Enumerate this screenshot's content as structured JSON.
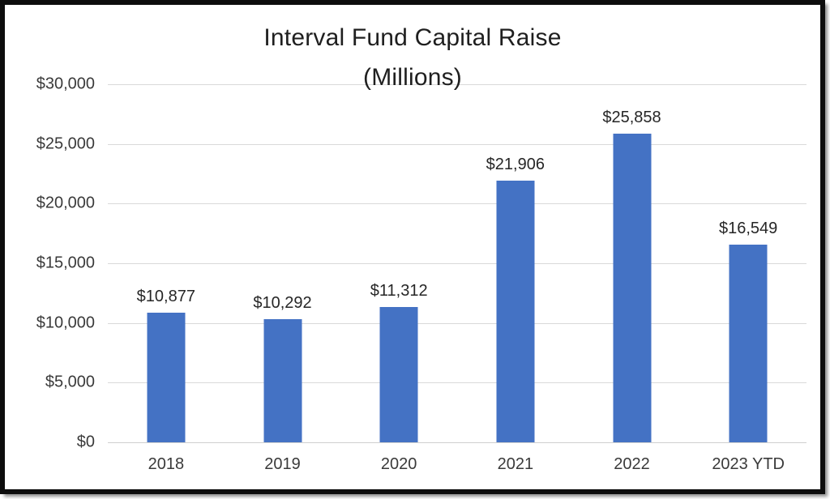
{
  "chart_data": {
    "type": "bar",
    "title": "Interval Fund Capital Raise",
    "subtitle": "(Millions)",
    "categories": [
      "2018",
      "2019",
      "2020",
      "2021",
      "2022",
      "2023 YTD"
    ],
    "values": [
      10877,
      10292,
      11312,
      21906,
      25858,
      16549
    ],
    "data_labels": [
      "$10,877",
      "$10,292",
      "$11,312",
      "$21,906",
      "$25,858",
      "$16,549"
    ],
    "y_tick_labels": [
      "$30,000",
      "$25,000",
      "$20,000",
      "$15,000",
      "$10,000",
      "$5,000",
      "$0"
    ],
    "ylim": [
      0,
      30000
    ],
    "y_tick_step": 5000,
    "xlabel": "",
    "ylabel": "",
    "grid": true,
    "legend": "none",
    "colors": {
      "bar_fill": "#4472C4",
      "gridline": "#D9D9D9",
      "axis_text": "#3A3A3A",
      "title_text": "#1F1F1F",
      "frame_border": "#0D0D0D",
      "background": "#FFFFFF"
    }
  }
}
